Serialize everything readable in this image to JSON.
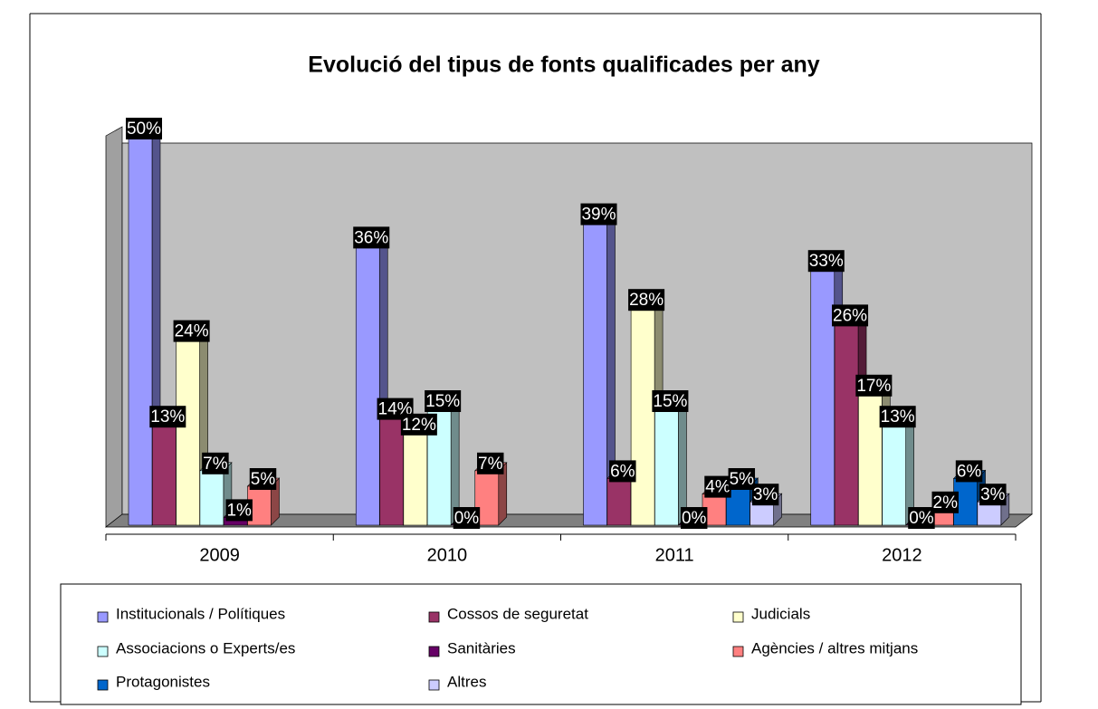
{
  "chart_data": {
    "type": "bar3d",
    "title": "Evolució del tipus de fonts qualificades per any",
    "categories": [
      "2009",
      "2010",
      "2011",
      "2012"
    ],
    "ylim": [
      0,
      50
    ],
    "series": [
      {
        "name": "Institucionals / Polítiques",
        "color": "#9999ff",
        "values": [
          50,
          36,
          39,
          33
        ],
        "value_labels": [
          "50%",
          "36%",
          "39%",
          "33%"
        ]
      },
      {
        "name": "Cossos de seguretat",
        "color": "#993366",
        "values": [
          13,
          14,
          6,
          26
        ],
        "value_labels": [
          "13%",
          "14%",
          "6%",
          "26%"
        ]
      },
      {
        "name": "Judicials",
        "color": "#ffffcc",
        "values": [
          24,
          12,
          28,
          17
        ],
        "value_labels": [
          "24%",
          "12%",
          "28%",
          "17%"
        ]
      },
      {
        "name": "Associacions o Experts/es",
        "color": "#ccffff",
        "values": [
          7,
          15,
          15,
          13
        ],
        "value_labels": [
          "7%",
          "15%",
          "15%",
          "13%"
        ]
      },
      {
        "name": "Sanitàries",
        "color": "#660066",
        "values": [
          1,
          0,
          0,
          0
        ],
        "value_labels": [
          "1%",
          "0%",
          "0%",
          "0%"
        ]
      },
      {
        "name": "Agències / altres mitjans",
        "color": "#ff8080",
        "values": [
          5,
          7,
          4,
          2
        ],
        "value_labels": [
          "5%",
          "7%",
          "4%",
          "2%"
        ]
      },
      {
        "name": "Protagonistes",
        "color": "#0066cc",
        "values": [
          null,
          null,
          5,
          6
        ],
        "value_labels": [
          null,
          null,
          "5%",
          "6%"
        ]
      },
      {
        "name": "Altres",
        "color": "#ccccff",
        "values": [
          null,
          null,
          3,
          3
        ],
        "value_labels": [
          null,
          null,
          "3%",
          "3%"
        ]
      }
    ]
  }
}
